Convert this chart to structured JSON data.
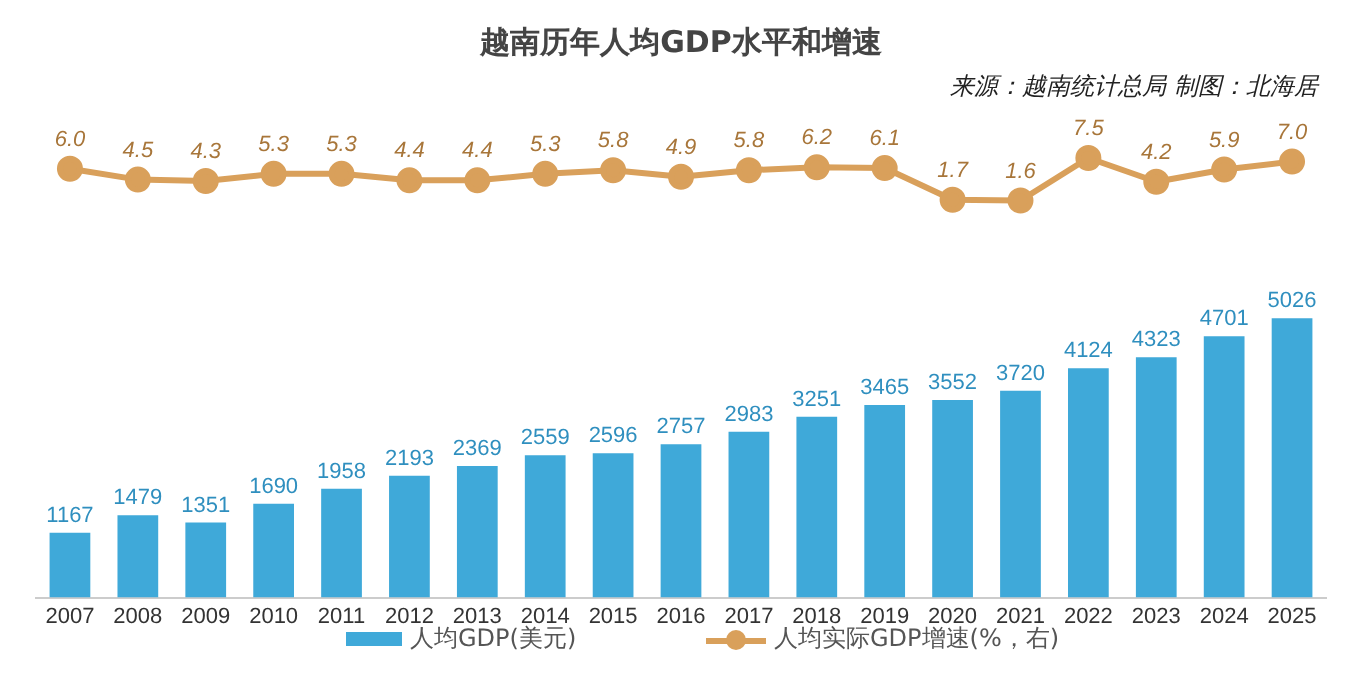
{
  "chart_data": [
    {
      "type": "line",
      "title": "越南历年人均GDP水平和增速",
      "annotations": [
        "来源：越南统计总局  制图：北海居"
      ],
      "categories": [
        "2007",
        "2008",
        "2009",
        "2010",
        "2011",
        "2012",
        "2013",
        "2014",
        "2015",
        "2016",
        "2017",
        "2018",
        "2019",
        "2020",
        "2021",
        "2022",
        "2023",
        "2024",
        "2025"
      ],
      "series": [
        {
          "name": "人均实际GDP增速(%，右)",
          "color": "#d9a05b",
          "values": [
            6.0,
            4.5,
            4.3,
            5.3,
            5.3,
            4.4,
            4.4,
            5.3,
            5.8,
            4.9,
            5.8,
            6.2,
            6.1,
            1.7,
            1.6,
            7.5,
            4.2,
            5.9,
            7.0
          ],
          "value_labels": [
            "6.0",
            "4.5",
            "4.3",
            "5.3",
            "5.3",
            "4.4",
            "4.4",
            "5.3",
            "5.8",
            "4.9",
            "5.8",
            "6.2",
            "6.1",
            "1.7",
            "1.6",
            "7.5",
            "4.2",
            "5.9",
            "7.0"
          ]
        }
      ],
      "tick_labels": false,
      "legend": "bottom",
      "grid": false,
      "marker": "circle",
      "line_style": "solid"
    },
    {
      "type": "bar",
      "categories": [
        "2007",
        "2008",
        "2009",
        "2010",
        "2011",
        "2012",
        "2013",
        "2014",
        "2015",
        "2016",
        "2017",
        "2018",
        "2019",
        "2020",
        "2021",
        "2022",
        "2023",
        "2024",
        "2025"
      ],
      "series": [
        {
          "name": "人均GDP(美元)",
          "color": "#3fa9d9",
          "values": [
            1167,
            1479,
            1351,
            1690,
            1958,
            2193,
            2369,
            2559,
            2596,
            2757,
            2983,
            3251,
            3465,
            3552,
            3720,
            4124,
            4323,
            4701,
            5026
          ]
        }
      ],
      "tick_labels": "x",
      "data_labels": true,
      "legend": "bottom",
      "grid": false
    }
  ]
}
